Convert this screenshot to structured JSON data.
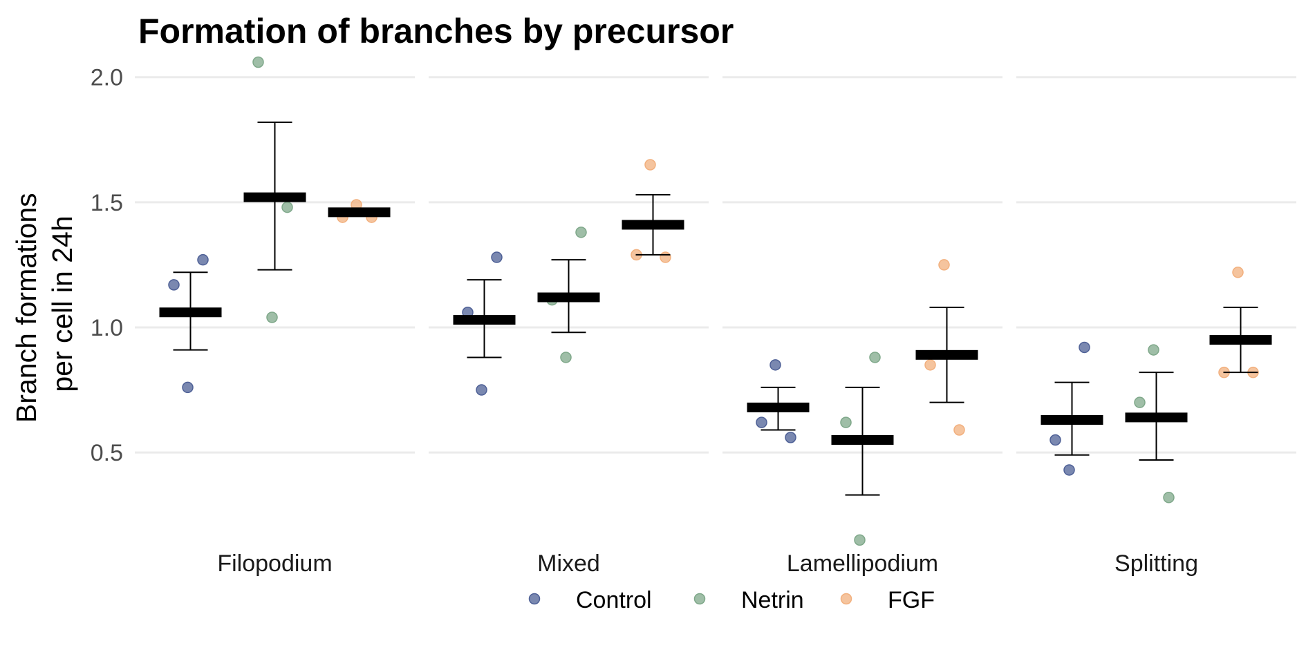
{
  "chart_data": {
    "type": "scatter",
    "title": "Formation of branches by precursor",
    "ylabel_lines": [
      "Branch formations",
      "per cell in 24h"
    ],
    "xlabel": "",
    "ylim": [
      0.1,
      2.06
    ],
    "yticks": [
      0.5,
      1.0,
      1.5,
      2.0
    ],
    "ytick_labels": [
      "0.5",
      "1.0",
      "1.5",
      "2.0"
    ],
    "grid": true,
    "legend_position": "bottom",
    "legend": [
      {
        "name": "Control",
        "color": "#4e6096"
      },
      {
        "name": "Netrin",
        "color": "#7fa88a"
      },
      {
        "name": "FGF",
        "color": "#f2b07e"
      }
    ],
    "groups": [
      "Control",
      "Netrin",
      "FGF"
    ],
    "facets": [
      {
        "name": "Filopodium",
        "groups": [
          {
            "group": "Control",
            "points": [
              1.17,
              1.27,
              0.76
            ],
            "mean": 1.06,
            "lower": 0.91,
            "upper": 1.22
          },
          {
            "group": "Netrin",
            "points": [
              2.06,
              1.48,
              1.04
            ],
            "mean": 1.52,
            "lower": 1.23,
            "upper": 1.82
          },
          {
            "group": "FGF",
            "points": [
              1.44,
              1.44,
              1.49
            ],
            "mean": 1.46,
            "lower": 1.45,
            "upper": 1.47
          }
        ]
      },
      {
        "name": "Mixed",
        "groups": [
          {
            "group": "Control",
            "points": [
              1.06,
              1.28,
              0.75
            ],
            "mean": 1.03,
            "lower": 0.88,
            "upper": 1.19
          },
          {
            "group": "Netrin",
            "points": [
              1.11,
              1.38,
              0.88
            ],
            "mean": 1.12,
            "lower": 0.98,
            "upper": 1.27
          },
          {
            "group": "FGF",
            "points": [
              1.29,
              1.28,
              1.65
            ],
            "mean": 1.41,
            "lower": 1.29,
            "upper": 1.53
          }
        ]
      },
      {
        "name": "Lamellipodium",
        "groups": [
          {
            "group": "Control",
            "points": [
              0.62,
              0.56,
              0.85
            ],
            "mean": 0.68,
            "lower": 0.59,
            "upper": 0.76
          },
          {
            "group": "Netrin",
            "points": [
              0.62,
              0.88,
              0.15
            ],
            "mean": 0.55,
            "lower": 0.33,
            "upper": 0.76
          },
          {
            "group": "FGF",
            "points": [
              0.85,
              0.59,
              1.25
            ],
            "mean": 0.89,
            "lower": 0.7,
            "upper": 1.08
          }
        ]
      },
      {
        "name": "Splitting",
        "groups": [
          {
            "group": "Control",
            "points": [
              0.55,
              0.92,
              0.43
            ],
            "mean": 0.63,
            "lower": 0.49,
            "upper": 0.78
          },
          {
            "group": "Netrin",
            "points": [
              0.7,
              0.32,
              0.91
            ],
            "mean": 0.64,
            "lower": 0.47,
            "upper": 0.82
          },
          {
            "group": "FGF",
            "points": [
              0.82,
              0.82,
              1.22
            ],
            "mean": 0.95,
            "lower": 0.82,
            "upper": 1.08
          }
        ]
      }
    ]
  }
}
